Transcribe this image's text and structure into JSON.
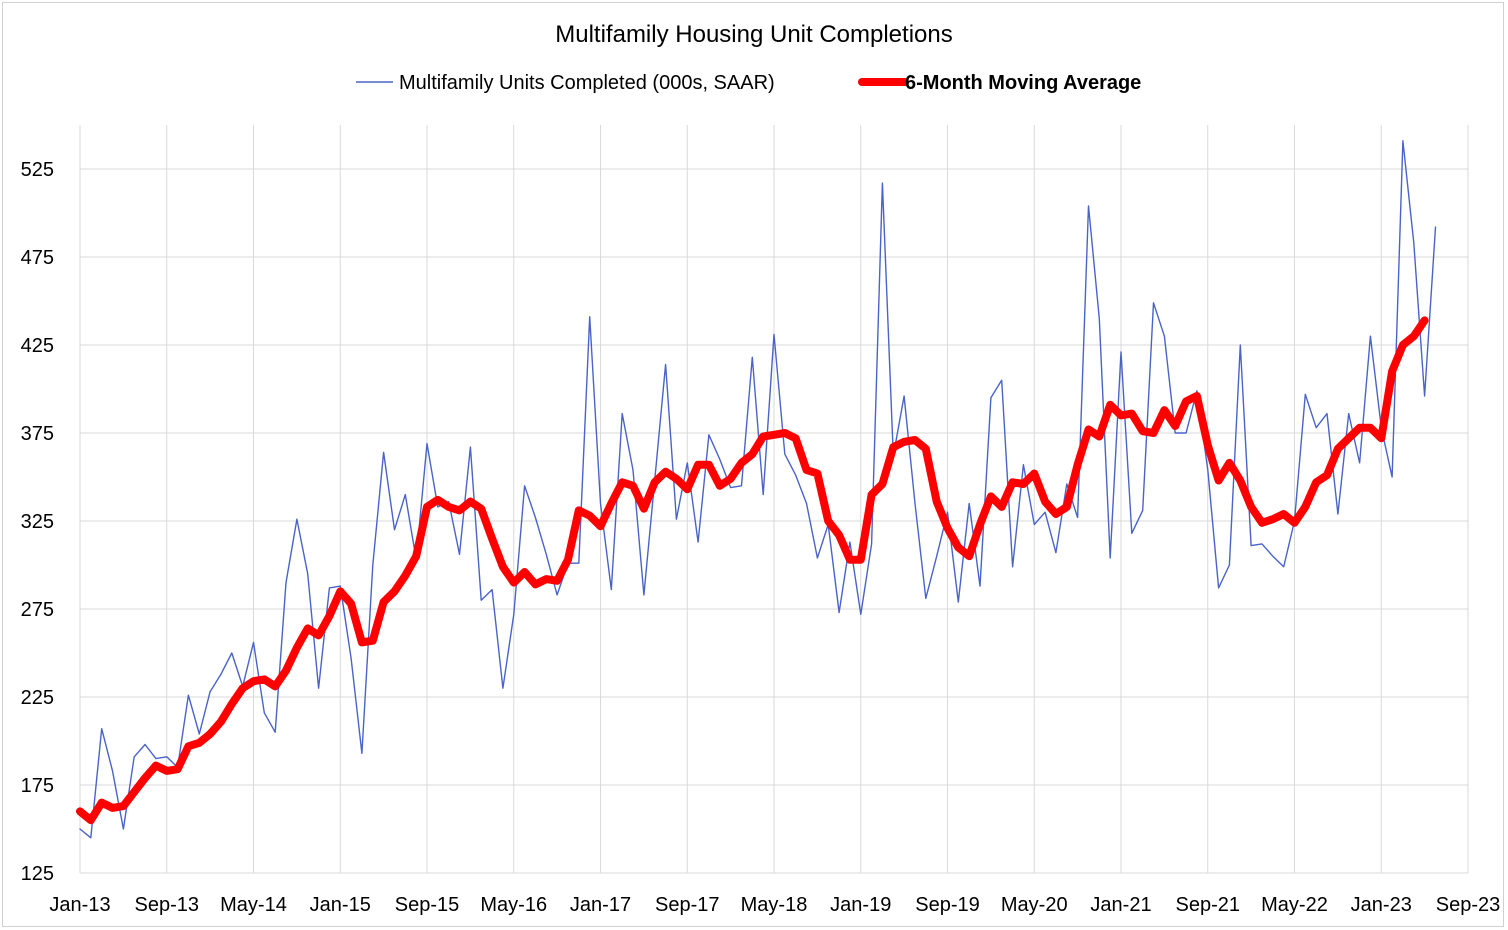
{
  "chart_data": {
    "type": "line",
    "title": "Multifamily Housing Unit Completions",
    "xlabel": "",
    "ylabel": "",
    "ylim": [
      125,
      550
    ],
    "yticks": [
      125,
      175,
      225,
      275,
      325,
      375,
      425,
      475,
      525
    ],
    "xtick_labels": [
      "Jan-13",
      "Sep-13",
      "May-14",
      "Jan-15",
      "Sep-15",
      "May-16",
      "Jan-17",
      "Sep-17",
      "May-18",
      "Jan-19",
      "Sep-19",
      "May-20",
      "Jan-21",
      "Sep-21",
      "May-22",
      "Jan-23",
      "Sep-23"
    ],
    "xtick_months": [
      0,
      8,
      16,
      24,
      32,
      40,
      48,
      56,
      64,
      72,
      80,
      88,
      96,
      104,
      112,
      120,
      128
    ],
    "x_range_months": [
      0,
      128
    ],
    "grid": true,
    "legend_position": "top",
    "series": [
      {
        "name": "Multifamily Units Completed (000s, SAAR)",
        "color": "#4a63c8",
        "style": "thin",
        "values": [
          150,
          145,
          207,
          183,
          150,
          191,
          198,
          190,
          191,
          185,
          226,
          204,
          228,
          238,
          250,
          231,
          256,
          216,
          205,
          290,
          326,
          295,
          230,
          287,
          288,
          247,
          193,
          300,
          364,
          320,
          340,
          303,
          369,
          333,
          336,
          306,
          367,
          280,
          286,
          230,
          272,
          345,
          327,
          306,
          283,
          301,
          301,
          441,
          335,
          286,
          386,
          354,
          283,
          348,
          414,
          326,
          358,
          313,
          374,
          360,
          344,
          345,
          418,
          340,
          431,
          363,
          351,
          335,
          304,
          323,
          273,
          313,
          272,
          312,
          517,
          362,
          396,
          335,
          281,
          305,
          330,
          279,
          335,
          288,
          395,
          405,
          299,
          357,
          323,
          330,
          307,
          346,
          327,
          504,
          440,
          304,
          421,
          318,
          331,
          449,
          430,
          375,
          375,
          399,
          354,
          287,
          300,
          425,
          311,
          312,
          305,
          299,
          325,
          397,
          378,
          386,
          329,
          386,
          358,
          430,
          378,
          350,
          541,
          483,
          396,
          492
        ]
      },
      {
        "name": "6-Month Moving Average",
        "color": "#ff0000",
        "style": "thick",
        "values": [
          160,
          155,
          165,
          162,
          163,
          171,
          179,
          186,
          183,
          184,
          197,
          199,
          204,
          211,
          221,
          230,
          234,
          235,
          231,
          240,
          253,
          264,
          260,
          271,
          285,
          278,
          256,
          257,
          279,
          285,
          294,
          305,
          333,
          337,
          333,
          331,
          336,
          332,
          315,
          299,
          290,
          296,
          289,
          292,
          291,
          303,
          331,
          328,
          322,
          335,
          347,
          345,
          332,
          347,
          353,
          349,
          343,
          357,
          357,
          345,
          349,
          358,
          363,
          373,
          374,
          375,
          372,
          354,
          352,
          325,
          317,
          303,
          303,
          340,
          346,
          367,
          370,
          371,
          366,
          336,
          321,
          310,
          305,
          323,
          339,
          333,
          347,
          346,
          352,
          336,
          329,
          333,
          357,
          377,
          373,
          391,
          385,
          386,
          376,
          375,
          388,
          379,
          393,
          396,
          368,
          348,
          358,
          348,
          333,
          324,
          326,
          329,
          324,
          333,
          347,
          351,
          366,
          372,
          378,
          378,
          372,
          410,
          425,
          430,
          439
        ]
      }
    ]
  }
}
